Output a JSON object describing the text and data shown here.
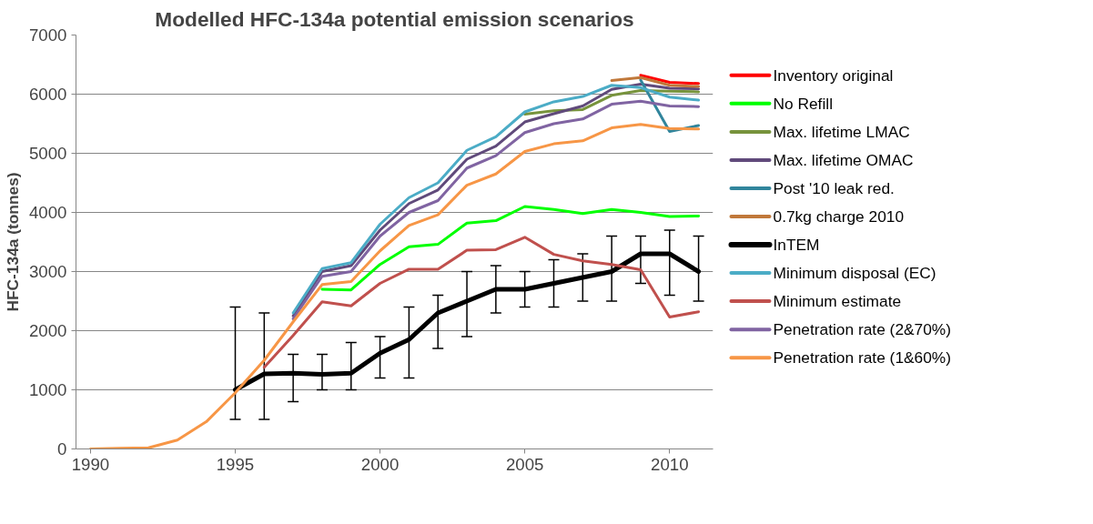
{
  "chart_data": {
    "type": "line",
    "title": "Modelled HFC-134a potential emission scenarios",
    "ylabel": "HFC-134a (tonnes)",
    "x": [
      1990,
      1991,
      1992,
      1993,
      1994,
      1995,
      1996,
      1997,
      1998,
      1999,
      2000,
      2001,
      2002,
      2003,
      2004,
      2005,
      2006,
      2007,
      2008,
      2009,
      2010,
      2011
    ],
    "xlim": [
      1989.5,
      2011.5
    ],
    "xticks": [
      1990,
      1995,
      2000,
      2005,
      2010
    ],
    "ylim": [
      0,
      7000
    ],
    "yticks": [
      0,
      1000,
      2000,
      3000,
      4000,
      5000,
      6000,
      7000
    ],
    "grid": "y",
    "legend": "right",
    "line_style": "solid",
    "series": [
      {
        "name": "Inventory original",
        "color": "#ff0000",
        "values": [
          null,
          null,
          null,
          null,
          null,
          null,
          null,
          null,
          null,
          null,
          null,
          null,
          null,
          null,
          null,
          null,
          null,
          null,
          null,
          6320,
          6200,
          6180
        ]
      },
      {
        "name": "No Refill",
        "color": "#00ff00",
        "values": [
          null,
          null,
          null,
          null,
          null,
          null,
          null,
          null,
          2700,
          2690,
          3120,
          3420,
          3460,
          3820,
          3860,
          4100,
          4050,
          3980,
          4050,
          4000,
          3930,
          3940
        ]
      },
      {
        "name": "Max. lifetime LMAC",
        "color": "#77933c",
        "values": [
          null,
          null,
          null,
          null,
          null,
          null,
          null,
          null,
          null,
          null,
          null,
          null,
          null,
          null,
          null,
          5660,
          5720,
          5740,
          5980,
          6060,
          6050,
          6040
        ]
      },
      {
        "name": "Max. lifetime OMAC",
        "color": "#604a7b",
        "values": [
          null,
          null,
          null,
          null,
          null,
          null,
          null,
          2250,
          3000,
          3100,
          3700,
          4150,
          4380,
          4900,
          5120,
          5530,
          5670,
          5800,
          6080,
          6170,
          6100,
          6090
        ]
      },
      {
        "name": "Post '10 leak red.",
        "color": "#31859c",
        "values": [
          null,
          null,
          null,
          null,
          null,
          null,
          null,
          null,
          null,
          null,
          null,
          null,
          null,
          null,
          null,
          null,
          null,
          null,
          null,
          6240,
          5370,
          5470
        ]
      },
      {
        "name": "0.7kg charge 2010",
        "color": "#c0783a",
        "values": [
          null,
          null,
          null,
          null,
          null,
          null,
          null,
          null,
          null,
          null,
          null,
          null,
          null,
          null,
          null,
          null,
          null,
          null,
          6230,
          6280,
          6150,
          6130
        ]
      },
      {
        "name": "InTEM",
        "color": "#000000",
        "values": [
          null,
          null,
          null,
          null,
          null,
          1000,
          1270,
          1280,
          1260,
          1280,
          1620,
          1850,
          2300,
          2500,
          2700,
          2700,
          2800,
          2900,
          3000,
          3300,
          3300,
          3000
        ],
        "errors": [
          null,
          null,
          null,
          null,
          null,
          [
            500,
            2400
          ],
          [
            500,
            2300
          ],
          [
            800,
            1600
          ],
          [
            1000,
            1600
          ],
          [
            1000,
            1800
          ],
          [
            1200,
            1900
          ],
          [
            1200,
            2400
          ],
          [
            1700,
            2600
          ],
          [
            1900,
            3000
          ],
          [
            2300,
            3100
          ],
          [
            2400,
            3000
          ],
          [
            2400,
            3200
          ],
          [
            2500,
            3300
          ],
          [
            2500,
            3600
          ],
          [
            2800,
            3600
          ],
          [
            2600,
            3700
          ],
          [
            2500,
            3600
          ]
        ]
      },
      {
        "name": "Minimum disposal (EC)",
        "color": "#4bacc6",
        "values": [
          null,
          null,
          null,
          null,
          null,
          null,
          null,
          2300,
          3050,
          3150,
          3800,
          4250,
          4500,
          5050,
          5280,
          5700,
          5870,
          5960,
          6150,
          6110,
          5950,
          5900
        ]
      },
      {
        "name": "Minimum estimate",
        "color": "#c0504d",
        "values": [
          null,
          null,
          null,
          null,
          null,
          null,
          1380,
          1920,
          2490,
          2420,
          2800,
          3040,
          3040,
          3360,
          3370,
          3580,
          3290,
          3180,
          3120,
          3030,
          2230,
          2320
        ]
      },
      {
        "name": "Penetration rate (2&70%)",
        "color": "#8064a2",
        "values": [
          null,
          null,
          null,
          null,
          null,
          null,
          null,
          2200,
          2920,
          3000,
          3600,
          4000,
          4200,
          4750,
          4960,
          5350,
          5500,
          5580,
          5830,
          5880,
          5800,
          5790
        ]
      },
      {
        "name": "Penetration rate (1&60%)",
        "color": "#f79646",
        "values": [
          0,
          10,
          20,
          150,
          460,
          950,
          1500,
          2150,
          2780,
          2830,
          3350,
          3780,
          3960,
          4460,
          4650,
          5030,
          5160,
          5210,
          5430,
          5490,
          5420,
          5410
        ]
      }
    ]
  }
}
